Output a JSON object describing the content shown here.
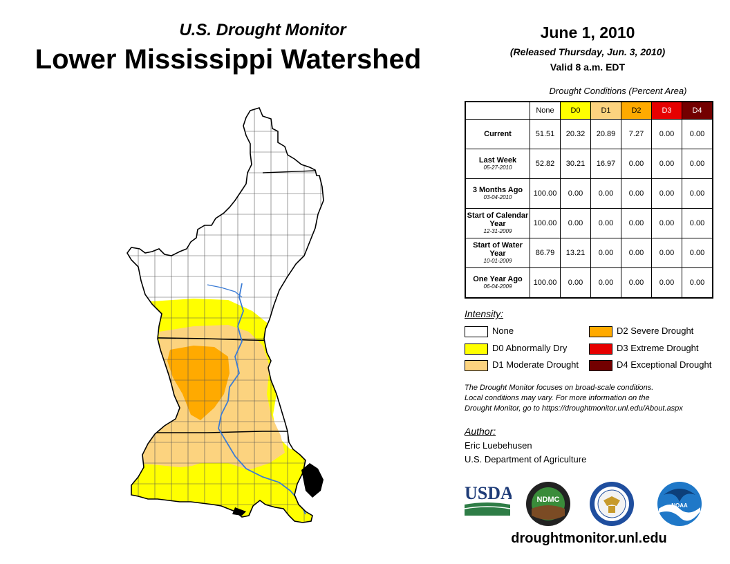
{
  "header": {
    "subtitle": "U.S. Drought Monitor",
    "title": "Lower Mississippi Watershed",
    "date": "June 1, 2010",
    "released": "(Released Thursday, Jun. 3, 2010)",
    "valid": "Valid 8 a.m. EDT"
  },
  "table": {
    "caption": "Drought Conditions (Percent Area)",
    "columns": [
      {
        "label": "None",
        "color": "#ffffff"
      },
      {
        "label": "D0",
        "color": "#ffff00"
      },
      {
        "label": "D1",
        "color": "#fcd37f"
      },
      {
        "label": "D2",
        "color": "#ffaa00"
      },
      {
        "label": "D3",
        "color": "#e60000"
      },
      {
        "label": "D4",
        "color": "#730000"
      }
    ],
    "rows": [
      {
        "label": "Current",
        "date": "",
        "values": [
          "51.51",
          "20.32",
          "20.89",
          "7.27",
          "0.00",
          "0.00"
        ]
      },
      {
        "label": "Last Week",
        "date": "05-27-2010",
        "values": [
          "52.82",
          "30.21",
          "16.97",
          "0.00",
          "0.00",
          "0.00"
        ]
      },
      {
        "label": "3 Months Ago",
        "date": "03-04-2010",
        "values": [
          "100.00",
          "0.00",
          "0.00",
          "0.00",
          "0.00",
          "0.00"
        ]
      },
      {
        "label": "Start of Calendar Year",
        "date": "12-31-2009",
        "values": [
          "100.00",
          "0.00",
          "0.00",
          "0.00",
          "0.00",
          "0.00"
        ]
      },
      {
        "label": "Start of Water Year",
        "date": "10-01-2009",
        "values": [
          "86.79",
          "13.21",
          "0.00",
          "0.00",
          "0.00",
          "0.00"
        ]
      },
      {
        "label": "One Year Ago",
        "date": "06-04-2009",
        "values": [
          "100.00",
          "0.00",
          "0.00",
          "0.00",
          "0.00",
          "0.00"
        ]
      }
    ]
  },
  "legend": {
    "title": "Intensity:",
    "items": [
      {
        "label": "None",
        "color": "#ffffff"
      },
      {
        "label": "D0 Abnormally Dry",
        "color": "#ffff00"
      },
      {
        "label": "D1 Moderate Drought",
        "color": "#fcd37f"
      },
      {
        "label": "D2 Severe Drought",
        "color": "#ffaa00"
      },
      {
        "label": "D3 Extreme Drought",
        "color": "#e60000"
      },
      {
        "label": "D4 Exceptional Drought",
        "color": "#730000"
      }
    ]
  },
  "note": {
    "line1": "The Drought Monitor focuses on broad-scale conditions.",
    "line2": "Local conditions may vary. For more information on the",
    "line3": "Drought Monitor, go to https://droughtmonitor.unl.edu/About.aspx"
  },
  "author": {
    "title": "Author:",
    "name": "Eric Luebehusen",
    "org": "U.S. Department of Agriculture"
  },
  "logos": {
    "usda": "USDA",
    "ndmc": "NDMC",
    "noaa": "NOAA",
    "commerce_icon": "eagle-seal-icon"
  },
  "footer": {
    "url": "droughtmonitor.unl.edu"
  },
  "map": {
    "colors": {
      "none": "#ffffff",
      "d0": "#ffff00",
      "d1": "#fcd37f",
      "d2": "#ffaa00",
      "river": "#3a7bd5",
      "water": "#000000"
    }
  }
}
